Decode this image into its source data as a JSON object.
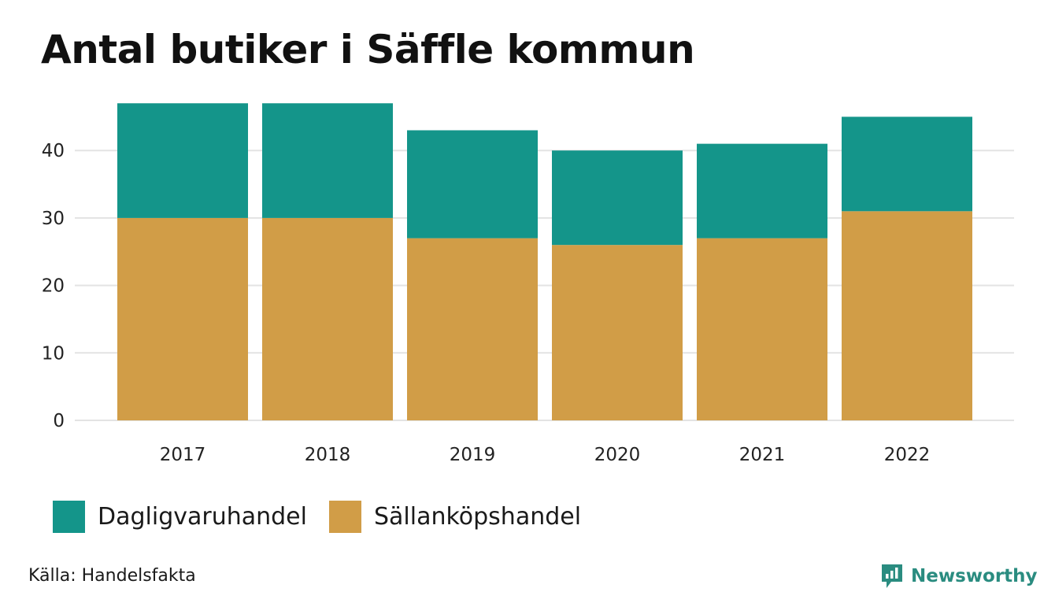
{
  "chart_data": {
    "type": "bar",
    "stacked": true,
    "title": "Antal butiker i Säffle kommun",
    "categories": [
      "2017",
      "2018",
      "2019",
      "2020",
      "2021",
      "2022"
    ],
    "series": [
      {
        "name": "Sällanköpshandel",
        "color": "#d19d47",
        "values": [
          30,
          30,
          27,
          26,
          27,
          31
        ]
      },
      {
        "name": "Dagligvaruhandel",
        "color": "#14958a",
        "values": [
          17,
          17,
          16,
          14,
          14,
          14
        ]
      }
    ],
    "yticks": [
      "0",
      "10",
      "20",
      "30",
      "40"
    ],
    "ylim": [
      0,
      47
    ],
    "xlabel": "",
    "ylabel": "",
    "grid": true,
    "legend_position": "bottom-left"
  },
  "legend": {
    "items": [
      {
        "label": "Dagligvaruhandel",
        "color": "#14958a"
      },
      {
        "label": "Sällanköpshandel",
        "color": "#d19d47"
      }
    ]
  },
  "source": "Källa: Handelsfakta",
  "brand": {
    "name": "Newsworthy",
    "icon": "newsworthy-logo-icon",
    "color": "#2a8c80"
  },
  "colors": {
    "gridline": "#e3e3e3",
    "background": "#ffffff"
  }
}
